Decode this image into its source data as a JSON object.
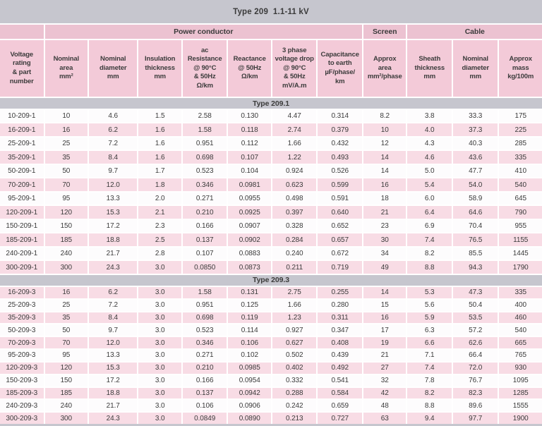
{
  "title": "Type 209  1.1-11 kV",
  "colors": {
    "bar_gray": "#c6c6ce",
    "group_header_pink": "#ecc2d1",
    "column_header_pink": "#f3cad8",
    "row_pink": "#f8dce5",
    "row_white": "#fdfcfd",
    "text": "#3b3b3b"
  },
  "table": {
    "groups": [
      {
        "label": "",
        "span": 1
      },
      {
        "label": "Power conductor",
        "span": 7
      },
      {
        "label": "Screen",
        "span": 1
      },
      {
        "label": "Cable",
        "span": 3
      }
    ],
    "columns": [
      "Voltage\nrating\n& part\nnumber",
      "Nominal\narea\nmm²",
      "Nominal\ndiameter\nmm",
      "Insulation\nthickness\nmm",
      "ac\nResistance\n@ 90°C\n& 50Hz\nΩ/km",
      "Reactance\n@ 50Hz\nΩ/km",
      "3 phase\nvoltage drop\n@ 90°C\n& 50Hz\nmV/A.m",
      "Capacitance\nto earth\nµF/phase/\nkm",
      "Approx\narea\nmm²/phase",
      "Sheath\nthickness\nmm",
      "Nominal\ndiameter\nmm",
      "Approx\nmass\nkg/100m"
    ],
    "sections": [
      {
        "label": "Type 209.1",
        "zebra_start": "white",
        "rows": [
          [
            "10-209-1",
            "10",
            "4.6",
            "1.5",
            "2.58",
            "0.130",
            "4.47",
            "0.314",
            "8.2",
            "3.8",
            "33.3",
            "175"
          ],
          [
            "16-209-1",
            "16",
            "6.2",
            "1.6",
            "1.58",
            "0.118",
            "2.74",
            "0.379",
            "10",
            "4.0",
            "37.3",
            "225"
          ],
          [
            "25-209-1",
            "25",
            "7.2",
            "1.6",
            "0.951",
            "0.112",
            "1.66",
            "0.432",
            "12",
            "4.3",
            "40.3",
            "285"
          ],
          [
            "35-209-1",
            "35",
            "8.4",
            "1.6",
            "0.698",
            "0.107",
            "1.22",
            "0.493",
            "14",
            "4.6",
            "43.6",
            "335"
          ],
          [
            "50-209-1",
            "50",
            "9.7",
            "1.7",
            "0.523",
            "0.104",
            "0.924",
            "0.526",
            "14",
            "5.0",
            "47.7",
            "410"
          ],
          [
            "70-209-1",
            "70",
            "12.0",
            "1.8",
            "0.346",
            "0.0981",
            "0.623",
            "0.599",
            "16",
            "5.4",
            "54.0",
            "540"
          ],
          [
            "95-209-1",
            "95",
            "13.3",
            "2.0",
            "0.271",
            "0.0955",
            "0.498",
            "0.591",
            "18",
            "6.0",
            "58.9",
            "645"
          ],
          [
            "120-209-1",
            "120",
            "15.3",
            "2.1",
            "0.210",
            "0.0925",
            "0.397",
            "0.640",
            "21",
            "6.4",
            "64.6",
            "790"
          ],
          [
            "150-209-1",
            "150",
            "17.2",
            "2.3",
            "0.166",
            "0.0907",
            "0.328",
            "0.652",
            "23",
            "6.9",
            "70.4",
            "955"
          ],
          [
            "185-209-1",
            "185",
            "18.8",
            "2.5",
            "0.137",
            "0.0902",
            "0.284",
            "0.657",
            "30",
            "7.4",
            "76.5",
            "1155"
          ],
          [
            "240-209-1",
            "240",
            "21.7",
            "2.8",
            "0.107",
            "0.0883",
            "0.240",
            "0.672",
            "34",
            "8.2",
            "85.5",
            "1445"
          ],
          [
            "300-209-1",
            "300",
            "24.3",
            "3.0",
            "0.0850",
            "0.0873",
            "0.211",
            "0.719",
            "49",
            "8.8",
            "94.3",
            "1790"
          ]
        ]
      },
      {
        "label": "Type 209.3",
        "zebra_start": "pink",
        "rows": [
          [
            "16-209-3",
            "16",
            "6.2",
            "3.0",
            "1.58",
            "0.131",
            "2.75",
            "0.255",
            "14",
            "5.3",
            "47.3",
            "335"
          ],
          [
            "25-209-3",
            "25",
            "7.2",
            "3.0",
            "0.951",
            "0.125",
            "1.66",
            "0.280",
            "15",
            "5.6",
            "50.4",
            "400"
          ],
          [
            "35-209-3",
            "35",
            "8.4",
            "3.0",
            "0.698",
            "0.119",
            "1.23",
            "0.311",
            "16",
            "5.9",
            "53.5",
            "460"
          ],
          [
            "50-209-3",
            "50",
            "9.7",
            "3.0",
            "0.523",
            "0.114",
            "0.927",
            "0.347",
            "17",
            "6.3",
            "57.2",
            "540"
          ],
          [
            "70-209-3",
            "70",
            "12.0",
            "3.0",
            "0.346",
            "0.106",
            "0.627",
            "0.408",
            "19",
            "6.6",
            "62.6",
            "665"
          ],
          [
            "95-209-3",
            "95",
            "13.3",
            "3.0",
            "0.271",
            "0.102",
            "0.502",
            "0.439",
            "21",
            "7.1",
            "66.4",
            "765"
          ],
          [
            "120-209-3",
            "120",
            "15.3",
            "3.0",
            "0.210",
            "0.0985",
            "0.402",
            "0.492",
            "27",
            "7.4",
            "72.0",
            "930"
          ],
          [
            "150-209-3",
            "150",
            "17.2",
            "3.0",
            "0.166",
            "0.0954",
            "0.332",
            "0.541",
            "32",
            "7.8",
            "76.7",
            "1095"
          ],
          [
            "185-209-3",
            "185",
            "18.8",
            "3.0",
            "0.137",
            "0.0942",
            "0.288",
            "0.584",
            "42",
            "8.2",
            "82.3",
            "1285"
          ],
          [
            "240-209-3",
            "240",
            "21.7",
            "3.0",
            "0.106",
            "0.0906",
            "0.242",
            "0.659",
            "48",
            "8.8",
            "89.6",
            "1555"
          ],
          [
            "300-209-3",
            "300",
            "24.3",
            "3.0",
            "0.0849",
            "0.0890",
            "0.213",
            "0.727",
            "63",
            "9.4",
            "97.7",
            "1900"
          ]
        ]
      }
    ]
  }
}
